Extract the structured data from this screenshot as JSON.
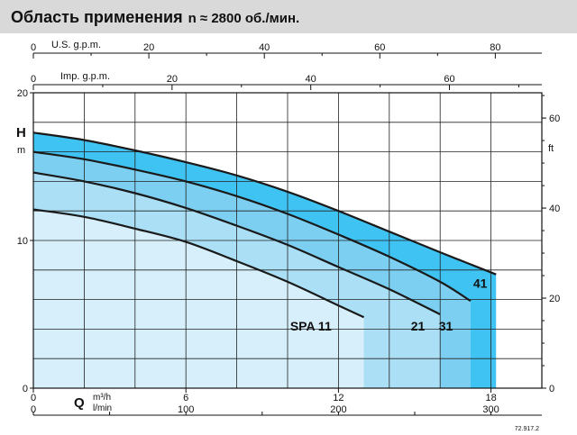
{
  "header": {
    "title": "Область применения",
    "subtitle": "n ≈ 2800 об./мин."
  },
  "chart_data": {
    "type": "area",
    "title": "Область применения",
    "subtitle": "n ≈ 2800 об./мин.",
    "x_axis": {
      "label": "Q",
      "unit_primary": "m³/h",
      "unit_secondary": "l/min",
      "range": [
        0,
        20
      ],
      "ticks_primary": [
        "0",
        "6",
        "12",
        "18"
      ],
      "tick_values_primary": [
        0,
        6,
        12,
        18
      ],
      "ticks_secondary": [
        "0",
        "100",
        "200",
        "300"
      ],
      "tick_values_secondary_m3h": [
        0,
        6,
        12,
        18
      ]
    },
    "top_axis_usgpm": {
      "label": "U.S. g.p.m.",
      "ticks": [
        "0",
        "20",
        "40",
        "60",
        "80"
      ],
      "tick_values_m3h": [
        0,
        4.542,
        9.085,
        13.627,
        18.169
      ]
    },
    "top_axis_impgpm": {
      "label": "Imp. g.p.m.",
      "ticks": [
        "0",
        "20",
        "40",
        "60"
      ],
      "tick_values_m3h": [
        0,
        5.455,
        10.91,
        16.365
      ]
    },
    "y_axis_left": {
      "label": "H",
      "unit": "m",
      "range": [
        0,
        20
      ],
      "ticks": [
        "0",
        "10",
        "20"
      ],
      "tick_values": [
        0,
        10,
        20
      ]
    },
    "y_axis_right": {
      "unit": "ft",
      "ticks": [
        "0",
        "20",
        "40",
        "60"
      ],
      "tick_values_m": [
        0,
        6.096,
        12.192,
        18.288
      ]
    },
    "grid": true,
    "series": [
      {
        "name": "SPA 11",
        "label": "SPA 11",
        "color": "#d6effa",
        "end_q": 13.0,
        "x": [
          0,
          2,
          4,
          6,
          8,
          10,
          12,
          13.0
        ],
        "y": [
          12.1,
          11.6,
          10.8,
          9.9,
          8.6,
          7.2,
          5.6,
          4.8
        ]
      },
      {
        "name": "21",
        "label": "21",
        "color": "#aadff5",
        "end_q": 16.0,
        "x": [
          0,
          2,
          4,
          6,
          8,
          10,
          12,
          14,
          16.0
        ],
        "y": [
          14.6,
          14.0,
          13.2,
          12.2,
          11.0,
          9.7,
          8.2,
          6.7,
          5.0
        ]
      },
      {
        "name": "31",
        "label": "31",
        "color": "#7dcff2",
        "end_q": 17.2,
        "x": [
          0,
          2,
          4,
          6,
          8,
          10,
          12,
          14,
          16,
          17.2
        ],
        "y": [
          16.0,
          15.5,
          14.8,
          14.0,
          13.0,
          11.8,
          10.4,
          8.9,
          7.2,
          5.9
        ]
      },
      {
        "name": "41",
        "label": "41",
        "color": "#3fc3f2",
        "end_q": 18.2,
        "x": [
          0,
          2,
          4,
          6,
          8,
          10,
          12,
          14,
          16,
          18.2
        ],
        "y": [
          17.3,
          16.8,
          16.1,
          15.3,
          14.4,
          13.3,
          12.0,
          10.6,
          9.2,
          7.7
        ]
      }
    ]
  },
  "footnote": "72.917.2"
}
